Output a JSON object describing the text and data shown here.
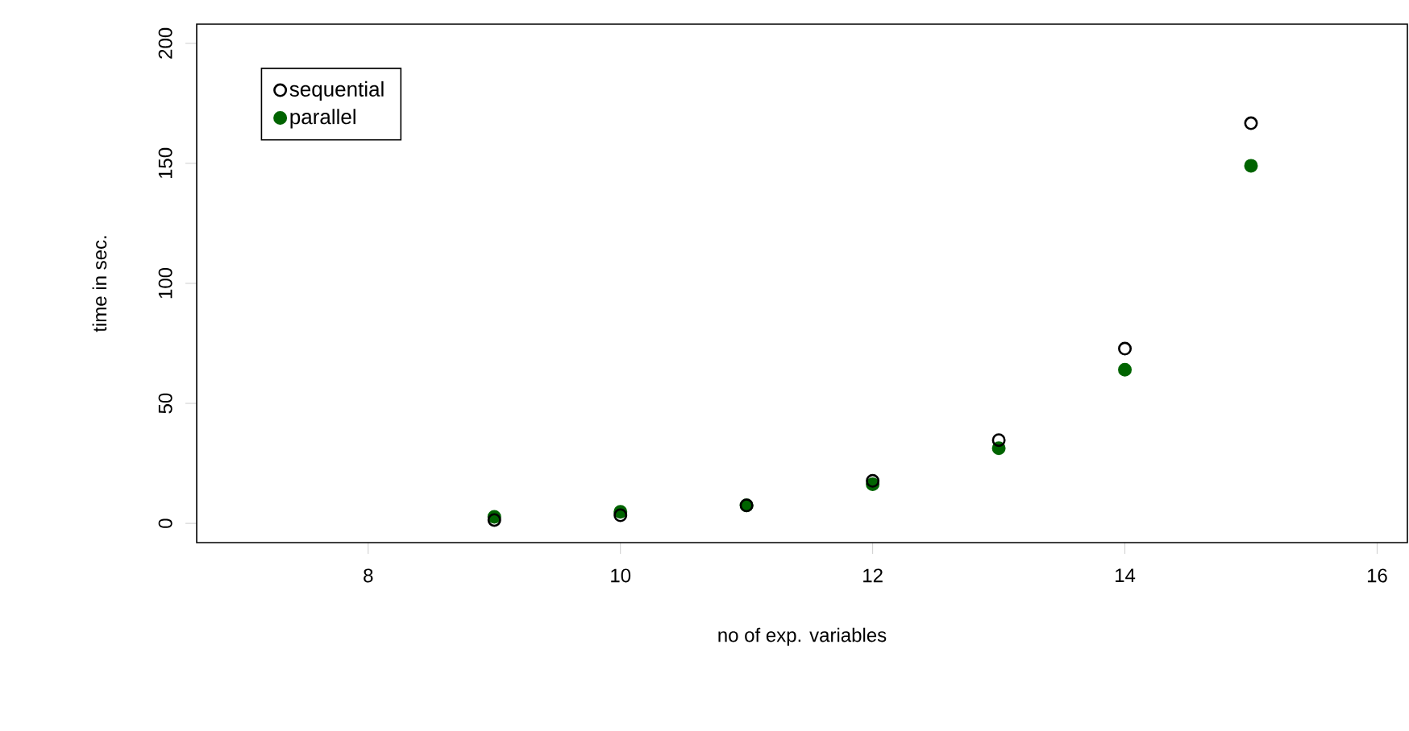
{
  "chart_data": {
    "type": "scatter",
    "xlabel": "no of exp. variables",
    "ylabel": "time in sec.",
    "x": [
      9,
      10,
      11,
      12,
      13,
      14,
      15
    ],
    "series": [
      {
        "name": "sequential",
        "color": "#000000",
        "values": [
          1.4,
          3.4,
          7.5,
          17.7,
          34.7,
          72.8,
          166.7
        ]
      },
      {
        "name": "parallel",
        "color": "#006400",
        "values": [
          2.7,
          4.8,
          7.5,
          16.3,
          31.3,
          64,
          149
        ]
      }
    ],
    "xlim": [
      6.64,
      16.24
    ],
    "ylim": [
      -8,
      208
    ],
    "xticks": [
      8,
      10,
      12,
      14,
      16
    ],
    "yticks": [
      0,
      50,
      100,
      150,
      200
    ],
    "marker": "circle",
    "legend": "top left",
    "grid": false
  }
}
